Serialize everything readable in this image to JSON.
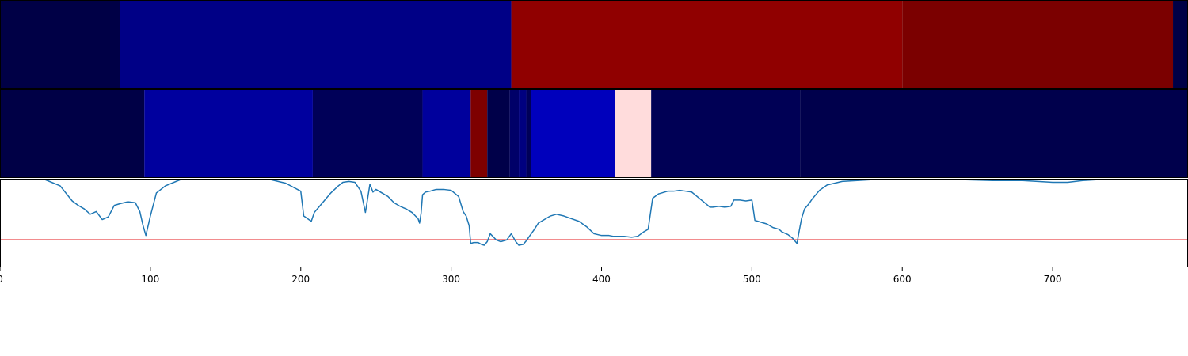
{
  "chart_data": {
    "type": "heatmap+line",
    "xlim": [
      0,
      790
    ],
    "x_ticks": [
      0,
      100,
      200,
      300,
      400,
      500,
      600,
      700
    ],
    "x_tick_labels": [
      "0",
      "100",
      "200",
      "300",
      "400",
      "500",
      "600",
      "700"
    ],
    "colormap": "seismic",
    "tracks": [
      {
        "segments": [
          {
            "start": 0,
            "end": 80,
            "color": "#000046"
          },
          {
            "start": 80,
            "end": 340,
            "color": "#000086"
          },
          {
            "start": 340,
            "end": 600,
            "color": "#900000"
          },
          {
            "start": 600,
            "end": 780,
            "color": "#7b0000"
          },
          {
            "start": 780,
            "end": 790,
            "color": "#000046"
          }
        ]
      },
      {
        "segments": [
          {
            "start": 0,
            "end": 96,
            "color": "#000046"
          },
          {
            "start": 96,
            "end": 208,
            "color": "#00009e"
          },
          {
            "start": 208,
            "end": 281,
            "color": "#000058"
          },
          {
            "start": 281,
            "end": 313,
            "color": "#00009c"
          },
          {
            "start": 313,
            "end": 324,
            "color": "#7e0000"
          },
          {
            "start": 324,
            "end": 339,
            "color": "#000049"
          },
          {
            "start": 339,
            "end": 345,
            "color": "#000068"
          },
          {
            "start": 345,
            "end": 350,
            "color": "#000080"
          },
          {
            "start": 350,
            "end": 353,
            "color": "#000058"
          },
          {
            "start": 353,
            "end": 409,
            "color": "#0000bc"
          },
          {
            "start": 409,
            "end": 433,
            "color": "#ffdcdc"
          },
          {
            "start": 433,
            "end": 532,
            "color": "#000055"
          },
          {
            "start": 532,
            "end": 790,
            "color": "#00004c"
          }
        ]
      }
    ],
    "line": {
      "color": "#1f77b4",
      "ylim": [
        0,
        1
      ],
      "x": [
        0,
        10,
        20,
        30,
        40,
        48,
        52,
        56,
        60,
        64,
        68,
        72,
        76,
        80,
        85,
        90,
        93,
        95,
        97,
        100,
        104,
        110,
        120,
        140,
        160,
        180,
        190,
        200,
        202,
        207,
        209,
        212,
        220,
        225,
        228,
        232,
        236,
        240,
        243,
        246,
        248,
        250,
        254,
        258,
        262,
        266,
        270,
        274,
        278,
        279,
        280,
        281,
        283,
        286,
        290,
        295,
        300,
        305,
        308,
        310,
        312,
        313,
        315,
        318,
        320,
        322,
        324,
        326,
        330,
        333,
        337,
        340,
        343,
        345,
        348,
        350,
        352,
        355,
        358,
        362,
        366,
        370,
        375,
        380,
        385,
        390,
        395,
        400,
        402,
        405,
        408,
        411,
        415,
        420,
        424,
        428,
        431,
        434,
        438,
        440,
        444,
        448,
        452,
        456,
        460,
        470,
        472,
        474,
        478,
        482,
        486,
        488,
        492,
        496,
        500,
        502,
        504,
        506,
        508,
        510,
        514,
        518,
        520,
        524,
        527,
        530,
        531,
        533,
        535,
        538,
        540,
        545,
        550,
        555,
        560,
        570,
        580,
        600,
        620,
        640,
        660,
        680,
        690,
        700,
        710,
        720,
        730,
        740,
        760,
        790
      ],
      "y": [
        1.0,
        1.0,
        1.0,
        0.99,
        0.92,
        0.75,
        0.7,
        0.66,
        0.6,
        0.63,
        0.54,
        0.57,
        0.7,
        0.72,
        0.74,
        0.73,
        0.63,
        0.48,
        0.36,
        0.58,
        0.84,
        0.92,
        0.99,
        1.0,
        1.0,
        0.99,
        0.95,
        0.86,
        0.58,
        0.52,
        0.62,
        0.68,
        0.84,
        0.92,
        0.96,
        0.97,
        0.96,
        0.86,
        0.62,
        0.94,
        0.85,
        0.88,
        0.84,
        0.8,
        0.73,
        0.69,
        0.66,
        0.62,
        0.55,
        0.5,
        0.61,
        0.82,
        0.85,
        0.86,
        0.88,
        0.88,
        0.87,
        0.8,
        0.63,
        0.58,
        0.47,
        0.27,
        0.28,
        0.28,
        0.26,
        0.25,
        0.29,
        0.38,
        0.31,
        0.29,
        0.31,
        0.38,
        0.29,
        0.25,
        0.26,
        0.3,
        0.35,
        0.42,
        0.5,
        0.54,
        0.58,
        0.6,
        0.58,
        0.55,
        0.52,
        0.46,
        0.38,
        0.36,
        0.36,
        0.36,
        0.35,
        0.35,
        0.35,
        0.34,
        0.35,
        0.4,
        0.43,
        0.78,
        0.83,
        0.84,
        0.86,
        0.86,
        0.87,
        0.86,
        0.85,
        0.71,
        0.68,
        0.68,
        0.69,
        0.68,
        0.69,
        0.76,
        0.76,
        0.75,
        0.76,
        0.53,
        0.52,
        0.51,
        0.5,
        0.49,
        0.45,
        0.43,
        0.4,
        0.37,
        0.33,
        0.27,
        0.37,
        0.55,
        0.66,
        0.72,
        0.77,
        0.87,
        0.93,
        0.95,
        0.97,
        0.98,
        0.99,
        1.0,
        1.0,
        0.99,
        0.98,
        0.98,
        0.97,
        0.96,
        0.96,
        0.98,
        0.99,
        1.0,
        1.0,
        1.0
      ]
    },
    "threshold": {
      "y": 0.31,
      "color": "#e41a1c"
    }
  }
}
